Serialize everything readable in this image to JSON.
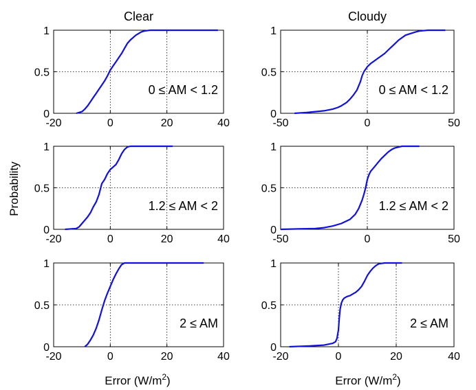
{
  "figure": {
    "ylabel": "Probability",
    "xlabel_prefix": "Error (W/m",
    "xlabel_sup": "2",
    "xlabel_suffix": ")",
    "line_color": "#1010e0"
  },
  "chart_data": [
    {
      "type": "line",
      "title": "Clear",
      "annotation": "0 ≤ AM < 1.2",
      "xlim": [
        -20,
        40
      ],
      "ylim": [
        0,
        1
      ],
      "xticks": [
        "-20",
        "0",
        "20",
        "40"
      ],
      "yticks": [
        "0",
        "0.5",
        "1"
      ],
      "series": [
        {
          "x": [
            -12,
            -10,
            -9,
            -8,
            -7,
            -6,
            -5,
            -4,
            -3,
            -2,
            -1,
            0,
            1,
            2,
            3,
            4,
            5,
            6,
            7,
            8,
            9,
            10,
            11,
            12,
            14,
            20,
            30,
            38
          ],
          "y": [
            0,
            0.02,
            0.05,
            0.09,
            0.14,
            0.19,
            0.24,
            0.29,
            0.34,
            0.39,
            0.45,
            0.52,
            0.57,
            0.62,
            0.67,
            0.72,
            0.78,
            0.84,
            0.88,
            0.91,
            0.94,
            0.96,
            0.98,
            0.99,
            1.0,
            1.0,
            1.0,
            1.0
          ]
        }
      ]
    },
    {
      "type": "line",
      "title": "Cloudy",
      "annotation": "0 ≤ AM < 1.2",
      "xlim": [
        -50,
        50
      ],
      "ylim": [
        0,
        1
      ],
      "xticks": [
        "-50",
        "0",
        "50"
      ],
      "yticks": [
        "0",
        "0.5",
        "1"
      ],
      "series": [
        {
          "x": [
            -42,
            -35,
            -30,
            -25,
            -20,
            -17,
            -15,
            -12,
            -10,
            -8,
            -6,
            -5,
            -4,
            -3,
            -2,
            0,
            2,
            4,
            6,
            8,
            10,
            12,
            14,
            16,
            18,
            20,
            22,
            25,
            28,
            30,
            35,
            40,
            45
          ],
          "y": [
            0,
            0.01,
            0.02,
            0.03,
            0.05,
            0.07,
            0.09,
            0.13,
            0.17,
            0.22,
            0.28,
            0.33,
            0.38,
            0.45,
            0.5,
            0.56,
            0.6,
            0.63,
            0.66,
            0.69,
            0.72,
            0.76,
            0.8,
            0.84,
            0.88,
            0.91,
            0.94,
            0.96,
            0.98,
            0.99,
            1.0,
            1.0,
            1.0
          ]
        }
      ]
    },
    {
      "type": "line",
      "title": "",
      "annotation": "1.2 ≤ AM < 2",
      "xlim": [
        -20,
        40
      ],
      "ylim": [
        0,
        1
      ],
      "xticks": [
        "-20",
        "0",
        "20",
        "40"
      ],
      "yticks": [
        "0",
        "0.5",
        "1"
      ],
      "series": [
        {
          "x": [
            -16,
            -12,
            -11,
            -10,
            -9,
            -8,
            -7,
            -6,
            -5,
            -4,
            -3,
            -2,
            -1,
            0,
            1,
            2,
            3,
            4,
            5,
            6,
            7,
            8,
            10,
            15,
            22
          ],
          "y": [
            0,
            0.01,
            0.03,
            0.07,
            0.11,
            0.15,
            0.2,
            0.27,
            0.33,
            0.42,
            0.55,
            0.6,
            0.67,
            0.72,
            0.75,
            0.78,
            0.84,
            0.91,
            0.96,
            0.99,
            1.0,
            1.0,
            1.0,
            1.0,
            1.0
          ]
        }
      ]
    },
    {
      "type": "line",
      "title": "",
      "annotation": "1.2 ≤ AM < 2",
      "xlim": [
        -50,
        50
      ],
      "ylim": [
        0,
        1
      ],
      "xticks": [
        "-50",
        "0",
        "50"
      ],
      "yticks": [
        "0",
        "0.5",
        "1"
      ],
      "series": [
        {
          "x": [
            -50,
            -40,
            -30,
            -25,
            -20,
            -15,
            -10,
            -7,
            -5,
            -3,
            -2,
            -1,
            0,
            1,
            2,
            4,
            6,
            8,
            10,
            12,
            14,
            16,
            18,
            20,
            22,
            25,
            30
          ],
          "y": [
            0,
            0.005,
            0.01,
            0.02,
            0.04,
            0.07,
            0.12,
            0.18,
            0.25,
            0.35,
            0.42,
            0.5,
            0.6,
            0.66,
            0.7,
            0.75,
            0.8,
            0.85,
            0.89,
            0.93,
            0.96,
            0.98,
            0.99,
            1.0,
            1.0,
            1.0,
            1.0
          ]
        }
      ]
    },
    {
      "type": "line",
      "title": "",
      "annotation": "2 ≤ AM",
      "xlim": [
        -20,
        40
      ],
      "ylim": [
        0,
        1
      ],
      "xticks": [
        "-20",
        "0",
        "20",
        "40"
      ],
      "yticks": [
        "0",
        "0.5",
        "1"
      ],
      "series": [
        {
          "x": [
            -9,
            -8,
            -7,
            -6,
            -5,
            -4,
            -3,
            -2,
            -1,
            0,
            1,
            2,
            3,
            4,
            5,
            8,
            15,
            25,
            33
          ],
          "y": [
            0,
            0.03,
            0.08,
            0.14,
            0.22,
            0.32,
            0.44,
            0.55,
            0.64,
            0.72,
            0.8,
            0.87,
            0.93,
            0.98,
            1.0,
            1.0,
            1.0,
            1.0,
            1.0
          ]
        }
      ]
    },
    {
      "type": "line",
      "title": "",
      "annotation": "2 ≤ AM",
      "xlim": [
        -20,
        40
      ],
      "ylim": [
        0,
        1
      ],
      "xticks": [
        "-20",
        "0",
        "20",
        "40"
      ],
      "yticks": [
        "0",
        "0.5",
        "1"
      ],
      "series": [
        {
          "x": [
            -17,
            -10,
            -5,
            -2,
            -1,
            -0.5,
            0,
            0.3,
            0.6,
            1,
            1.5,
            2,
            3,
            4,
            5,
            6,
            7,
            8,
            9,
            10,
            11,
            12,
            13,
            14,
            16,
            18,
            20,
            22
          ],
          "y": [
            0,
            0.01,
            0.02,
            0.04,
            0.06,
            0.1,
            0.2,
            0.35,
            0.45,
            0.52,
            0.56,
            0.58,
            0.6,
            0.61,
            0.63,
            0.65,
            0.68,
            0.72,
            0.78,
            0.85,
            0.9,
            0.94,
            0.97,
            0.99,
            1.0,
            1.0,
            1.0,
            1.0
          ]
        }
      ]
    }
  ]
}
